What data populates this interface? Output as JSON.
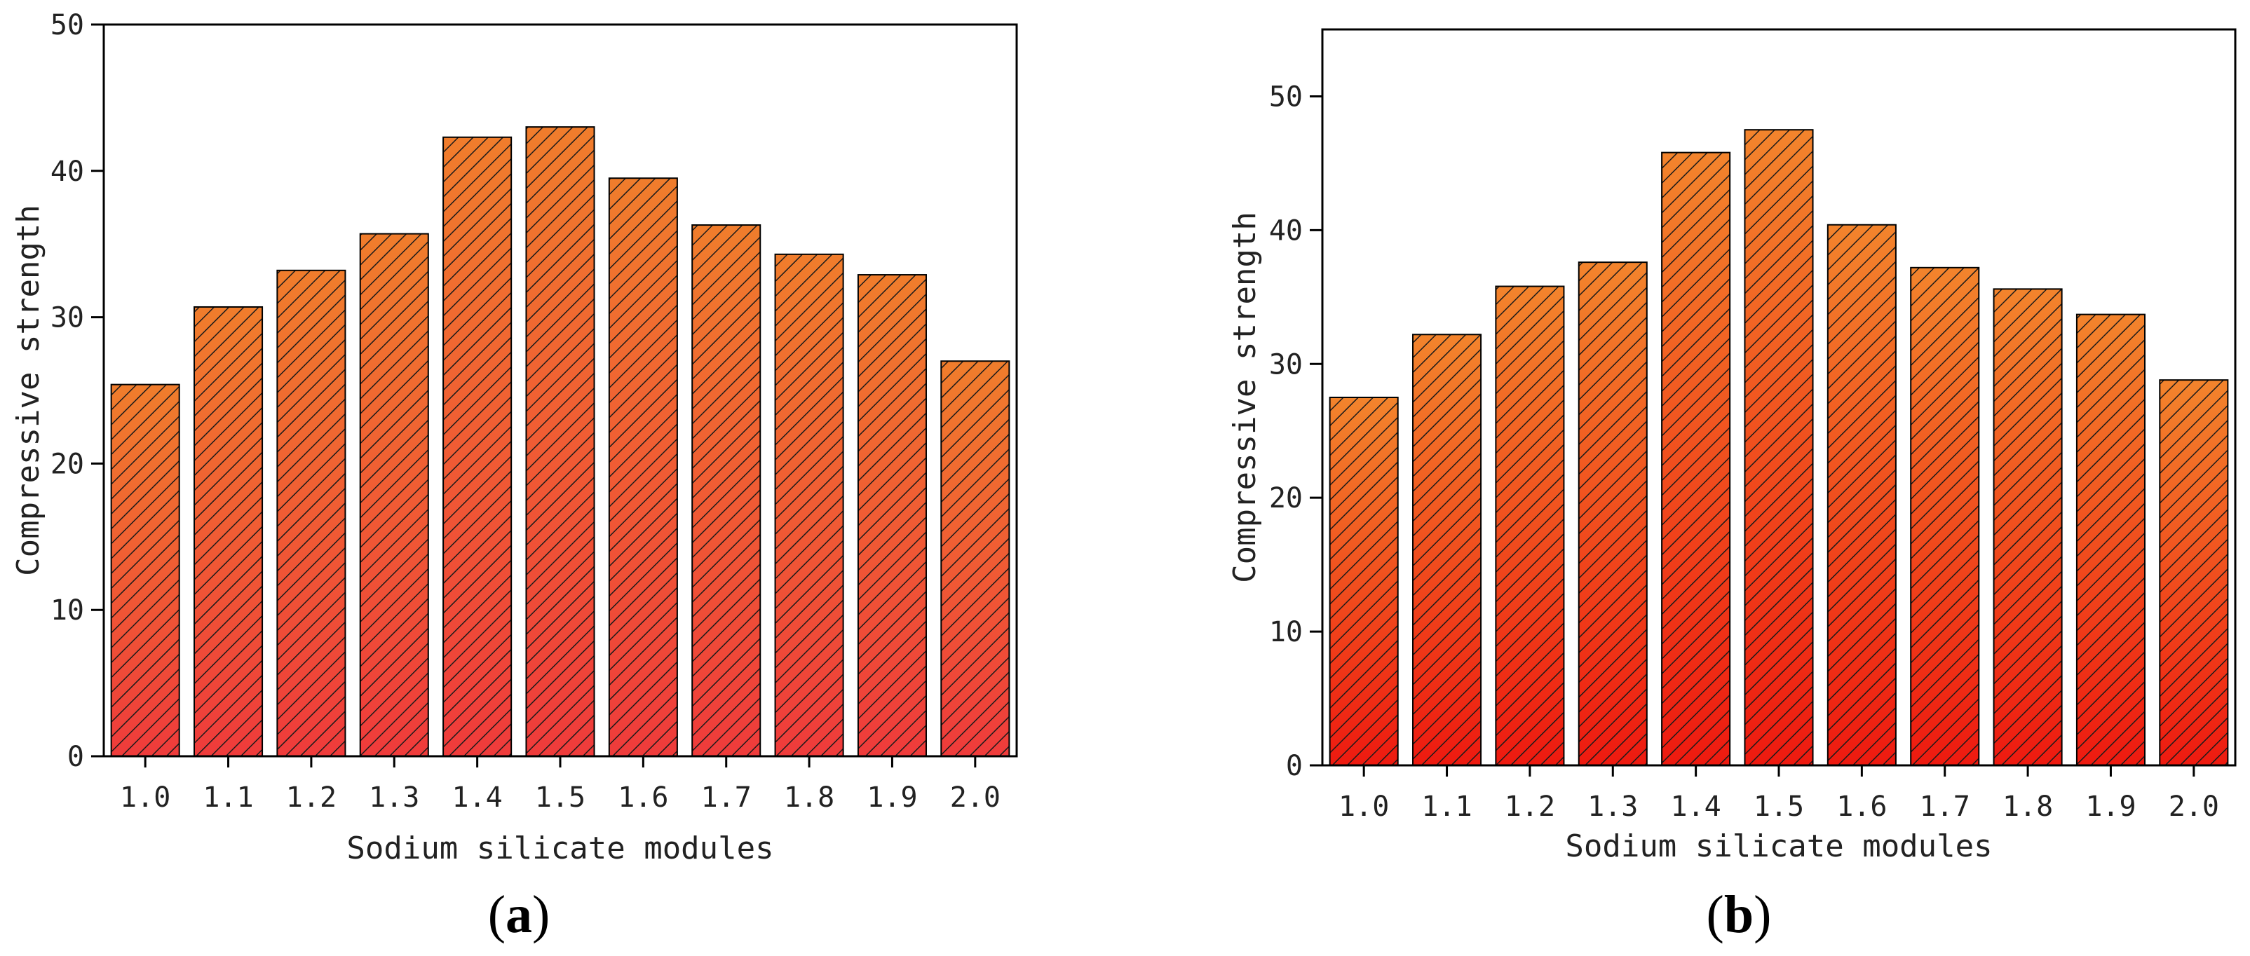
{
  "figure": {
    "panels": [
      {
        "label_open": "(",
        "label_letter": "a",
        "label_close": ")"
      },
      {
        "label_open": "(",
        "label_letter": "b",
        "label_close": ")"
      }
    ]
  },
  "colors": {
    "bar_top_a": "#f07d2c",
    "bar_bottom_a": "#ef3b3b",
    "bar_top_b": "#f3842c",
    "bar_bottom_b": "#ee1a10",
    "hatch": "#1a1a1a",
    "axis": "#000000"
  },
  "chart_data": [
    {
      "type": "bar",
      "title": "",
      "xlabel": "Sodium silicate modules",
      "ylabel": "Compressive strength",
      "categories": [
        "1.0",
        "1.1",
        "1.2",
        "1.3",
        "1.4",
        "1.5",
        "1.6",
        "1.7",
        "1.8",
        "1.9",
        "2.0"
      ],
      "values": [
        25.4,
        30.7,
        33.2,
        35.7,
        42.3,
        43.0,
        39.5,
        36.3,
        34.3,
        32.9,
        27.0
      ],
      "ylim": [
        0,
        50
      ],
      "yticks": [
        "0",
        "10",
        "20",
        "30",
        "40",
        "50"
      ],
      "hatched": true,
      "grid": false
    },
    {
      "type": "bar",
      "title": "",
      "xlabel": "Sodium silicate modules",
      "ylabel": "Compressive strength",
      "categories": [
        "1.0",
        "1.1",
        "1.2",
        "1.3",
        "1.4",
        "1.5",
        "1.6",
        "1.7",
        "1.8",
        "1.9",
        "2.0"
      ],
      "values": [
        27.5,
        32.2,
        35.8,
        37.6,
        45.8,
        47.5,
        40.4,
        37.2,
        35.6,
        33.7,
        28.8
      ],
      "ylim": [
        0,
        55
      ],
      "yticks": [
        "0",
        "10",
        "20",
        "30",
        "40",
        "50"
      ],
      "hatched": true,
      "grid": false
    }
  ]
}
